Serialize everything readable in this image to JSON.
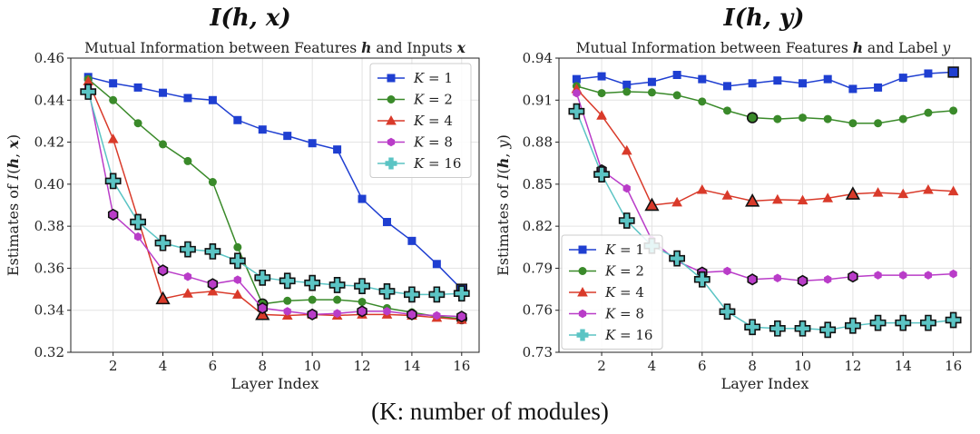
{
  "caption": "(K: number of modules)",
  "chart_data": [
    {
      "type": "line",
      "big_title": "I(h, x)",
      "title": "Mutual Information between Features h and Inputs x",
      "xlabel": "Layer Index",
      "ylabel": "Estimates of I(h, x)",
      "xlim": [
        0.3,
        16.7
      ],
      "ylim": [
        0.32,
        0.46
      ],
      "xticks": [
        2,
        4,
        6,
        8,
        10,
        12,
        14,
        16
      ],
      "yticks": [
        0.32,
        0.34,
        0.36,
        0.38,
        0.4,
        0.42,
        0.44,
        0.46
      ],
      "ytick_labels": [
        "0.32",
        "0.34",
        "0.36",
        "0.38",
        "0.40",
        "0.42",
        "0.44",
        "0.46"
      ],
      "legend_position": "top-right",
      "grid": true,
      "x": [
        1,
        2,
        3,
        4,
        5,
        6,
        7,
        8,
        9,
        10,
        11,
        12,
        13,
        14,
        15,
        16
      ],
      "series": [
        {
          "name": "K = 1",
          "label_k": "K",
          "label_v": "= 1",
          "color": "#1f3fd1",
          "marker": "square",
          "values": [
            0.451,
            0.448,
            0.446,
            0.4435,
            0.441,
            0.44,
            0.4305,
            0.426,
            0.423,
            0.4195,
            0.4165,
            0.393,
            0.382,
            0.373,
            0.362,
            0.35
          ],
          "highlight": [
            16
          ]
        },
        {
          "name": "K = 2",
          "label_k": "K",
          "label_v": "= 2",
          "color": "#3a8a2a",
          "marker": "circle",
          "values": [
            0.45,
            0.44,
            0.429,
            0.419,
            0.411,
            0.401,
            0.37,
            0.343,
            0.3445,
            0.345,
            0.345,
            0.344,
            0.341,
            0.339,
            0.337,
            0.336
          ],
          "highlight": [
            8,
            16
          ]
        },
        {
          "name": "K = 4",
          "label_k": "K",
          "label_v": "= 4",
          "color": "#d93a2a",
          "marker": "triangle",
          "values": [
            0.449,
            0.4215,
            0.3835,
            0.3455,
            0.348,
            0.349,
            0.3475,
            0.338,
            0.3375,
            0.338,
            0.3375,
            0.338,
            0.338,
            0.3375,
            0.3365,
            0.3355
          ],
          "highlight": [
            4,
            8
          ]
        },
        {
          "name": "K = 8",
          "label_k": "K",
          "label_v": "= 8",
          "color": "#b93cc8",
          "marker": "hexagon",
          "values": [
            0.446,
            0.3855,
            0.375,
            0.359,
            0.356,
            0.3525,
            0.3545,
            0.341,
            0.3395,
            0.338,
            0.3385,
            0.3395,
            0.3395,
            0.338,
            0.3375,
            0.337
          ],
          "highlight": [
            2,
            4,
            6,
            8,
            10,
            12,
            14,
            16
          ]
        },
        {
          "name": "K = 16",
          "label_k": "K",
          "label_v": "= 16",
          "color": "#5bc4c4",
          "marker": "plus",
          "values": [
            0.444,
            0.4015,
            0.382,
            0.372,
            0.369,
            0.368,
            0.3635,
            0.3555,
            0.354,
            0.353,
            0.352,
            0.3515,
            0.349,
            0.3475,
            0.3475,
            0.348
          ],
          "highlight": [
            1,
            2,
            3,
            4,
            5,
            6,
            7,
            8,
            9,
            10,
            11,
            12,
            13,
            14,
            15,
            16
          ]
        }
      ]
    },
    {
      "type": "line",
      "big_title": "I(h, y)",
      "title": "Mutual Information between Features h and Label y",
      "xlabel": "Layer Index",
      "ylabel": "Estimates of I(h, y)",
      "xlim": [
        0.3,
        16.7
      ],
      "ylim": [
        0.73,
        0.94
      ],
      "xticks": [
        2,
        4,
        6,
        8,
        10,
        12,
        14,
        16
      ],
      "yticks": [
        0.73,
        0.76,
        0.79,
        0.82,
        0.85,
        0.88,
        0.91,
        0.94
      ],
      "ytick_labels": [
        "0.73",
        "0.76",
        "0.79",
        "0.82",
        "0.85",
        "0.88",
        "0.91",
        "0.94"
      ],
      "legend_position": "bottom-left",
      "grid": true,
      "x": [
        1,
        2,
        3,
        4,
        5,
        6,
        7,
        8,
        9,
        10,
        11,
        12,
        13,
        14,
        15,
        16
      ],
      "series": [
        {
          "name": "K = 1",
          "label_k": "K",
          "label_v": "= 1",
          "color": "#1f3fd1",
          "marker": "square",
          "values": [
            0.925,
            0.927,
            0.921,
            0.923,
            0.928,
            0.925,
            0.92,
            0.922,
            0.924,
            0.922,
            0.925,
            0.918,
            0.919,
            0.926,
            0.929,
            0.93
          ],
          "highlight": [
            16
          ]
        },
        {
          "name": "K = 2",
          "label_k": "K",
          "label_v": "= 2",
          "color": "#3a8a2a",
          "marker": "circle",
          "values": [
            0.92,
            0.915,
            0.916,
            0.9155,
            0.9135,
            0.909,
            0.9025,
            0.8975,
            0.8965,
            0.8975,
            0.8965,
            0.8935,
            0.8935,
            0.8965,
            0.901,
            0.9025
          ],
          "highlight": [
            8
          ]
        },
        {
          "name": "K = 4",
          "label_k": "K",
          "label_v": "= 4",
          "color": "#d93a2a",
          "marker": "triangle",
          "values": [
            0.918,
            0.899,
            0.874,
            0.835,
            0.837,
            0.846,
            0.842,
            0.838,
            0.839,
            0.8385,
            0.84,
            0.843,
            0.844,
            0.843,
            0.846,
            0.845
          ],
          "highlight": [
            4,
            8,
            12
          ]
        },
        {
          "name": "K = 8",
          "label_k": "K",
          "label_v": "= 8",
          "color": "#b93cc8",
          "marker": "hexagon",
          "values": [
            0.915,
            0.86,
            0.847,
            0.81,
            0.795,
            0.787,
            0.788,
            0.782,
            0.783,
            0.781,
            0.782,
            0.784,
            0.785,
            0.785,
            0.785,
            0.786
          ],
          "highlight": [
            2,
            6,
            8,
            10,
            12
          ]
        },
        {
          "name": "K = 16",
          "label_k": "K",
          "label_v": "= 16",
          "color": "#5bc4c4",
          "marker": "plus",
          "values": [
            0.902,
            0.857,
            0.824,
            0.806,
            0.797,
            0.782,
            0.759,
            0.748,
            0.747,
            0.747,
            0.746,
            0.749,
            0.751,
            0.751,
            0.751,
            0.753
          ],
          "highlight": [
            1,
            2,
            3,
            4,
            5,
            6,
            7,
            8,
            9,
            10,
            11,
            12,
            13,
            14,
            15,
            16
          ]
        }
      ]
    }
  ]
}
